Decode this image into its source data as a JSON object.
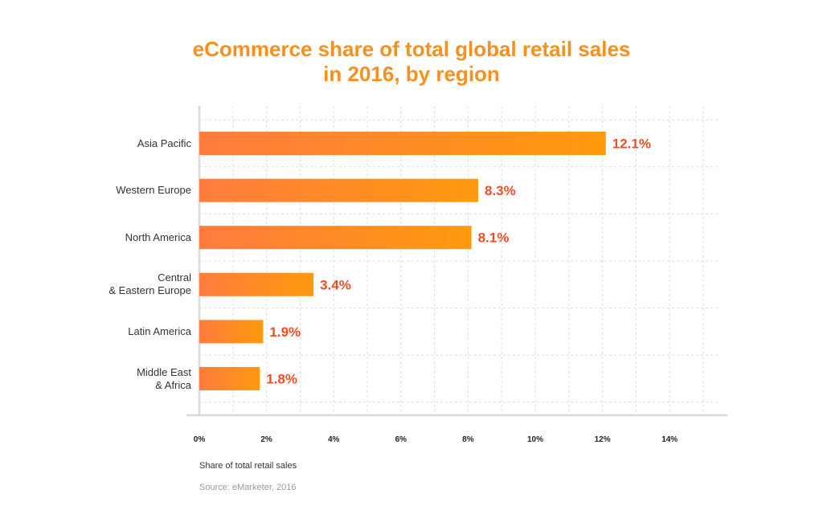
{
  "chart_data": {
    "type": "bar",
    "orientation": "horizontal",
    "title_lines": [
      "eCommerce share of total global retail sales",
      "in 2016, by region"
    ],
    "categories": [
      "Asia Pacific",
      "Western Europe",
      "North America",
      "Central\n& Eastern Europe",
      "Latin America",
      "Middle East\n& Africa"
    ],
    "values": [
      12.1,
      8.3,
      8.1,
      3.4,
      1.9,
      1.8
    ],
    "value_labels": [
      "12.1%",
      "8.3%",
      "8.1%",
      "3.4%",
      "1.9%",
      "1.8%"
    ],
    "x_ticks": [
      "0%",
      "2%",
      "4%",
      "6%",
      "8%",
      "10%",
      "12%",
      "14%"
    ],
    "xlim": [
      0,
      15
    ],
    "xlabel": "Share of total retail sales",
    "ylabel": "",
    "source": "Source: eMarketer, 2016",
    "grid": true,
    "legend": "none",
    "colors": {
      "title": "#f7901e",
      "bar_start": "#ff7c3d",
      "bar_end": "#ff9a0e",
      "value_label": "#f04e23",
      "grid": "#dddddd",
      "axis": "#d9d9d9"
    }
  }
}
